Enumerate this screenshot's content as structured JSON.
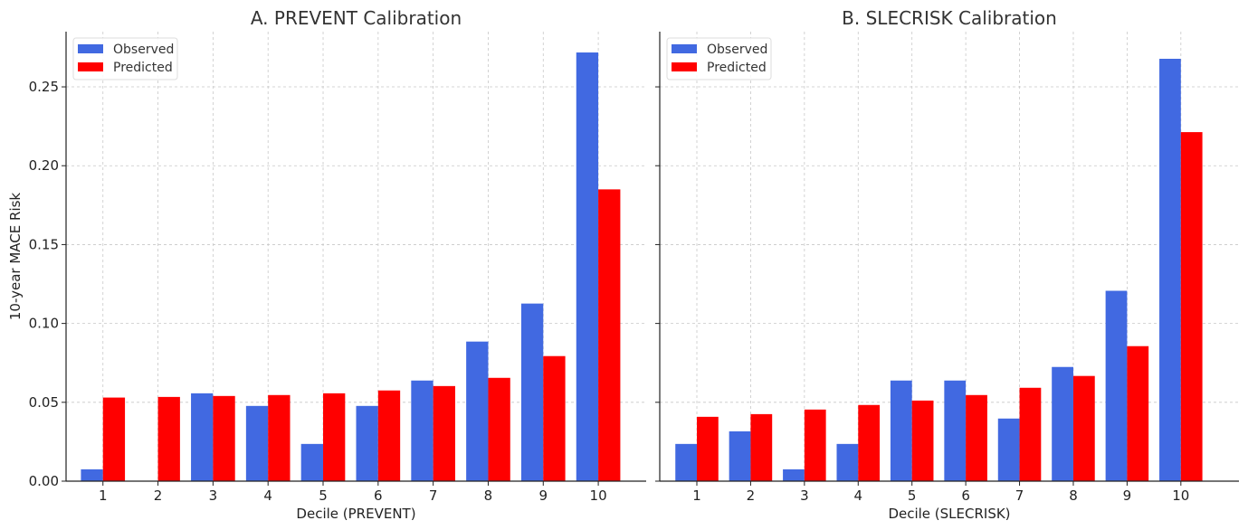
{
  "chart_data": [
    {
      "type": "bar",
      "title": "A. PREVENT Calibration",
      "xlabel": "Decile (PREVENT)",
      "ylabel": "10-year MACE Risk",
      "categories": [
        "1",
        "2",
        "3",
        "4",
        "5",
        "6",
        "7",
        "8",
        "9",
        "10"
      ],
      "ylim": [
        0,
        0.285
      ],
      "xlim": [
        0.33,
        10.87
      ],
      "grid": true,
      "legend": "top-left",
      "yticks": [
        "0.00",
        "0.05",
        "0.10",
        "0.15",
        "0.20",
        "0.25"
      ],
      "series": [
        {
          "name": "Observed",
          "color": "#4169E1",
          "values": [
            0.0075,
            0,
            0.0557,
            0.0477,
            0.0236,
            0.0477,
            0.0638,
            0.0885,
            0.1126,
            0.2718
          ]
        },
        {
          "name": "Predicted",
          "color": "#FF0000",
          "values": [
            0.053,
            0.0534,
            0.054,
            0.0546,
            0.0557,
            0.0575,
            0.0603,
            0.0655,
            0.0793,
            0.185
          ]
        }
      ]
    },
    {
      "type": "bar",
      "title": "B. SLECRISK Calibration",
      "xlabel": "Decile (SLECRISK)",
      "ylabel": "",
      "categories": [
        "1",
        "2",
        "3",
        "4",
        "5",
        "6",
        "7",
        "8",
        "9",
        "10"
      ],
      "ylim": [
        0,
        0.285
      ],
      "xlim": [
        0.31,
        11.08
      ],
      "grid": true,
      "legend": "top-left",
      "yticks": [
        "0.00",
        "0.05",
        "0.10",
        "0.15",
        "0.20",
        "0.25"
      ],
      "series": [
        {
          "name": "Observed",
          "color": "#4169E1",
          "values": [
            0.0236,
            0.0316,
            0.0075,
            0.0236,
            0.0638,
            0.0638,
            0.0397,
            0.0724,
            0.1207,
            0.2678
          ]
        },
        {
          "name": "Predicted",
          "color": "#FF0000",
          "values": [
            0.0408,
            0.0425,
            0.0454,
            0.0483,
            0.0511,
            0.0546,
            0.0592,
            0.0667,
            0.0856,
            0.2213
          ]
        }
      ]
    }
  ]
}
